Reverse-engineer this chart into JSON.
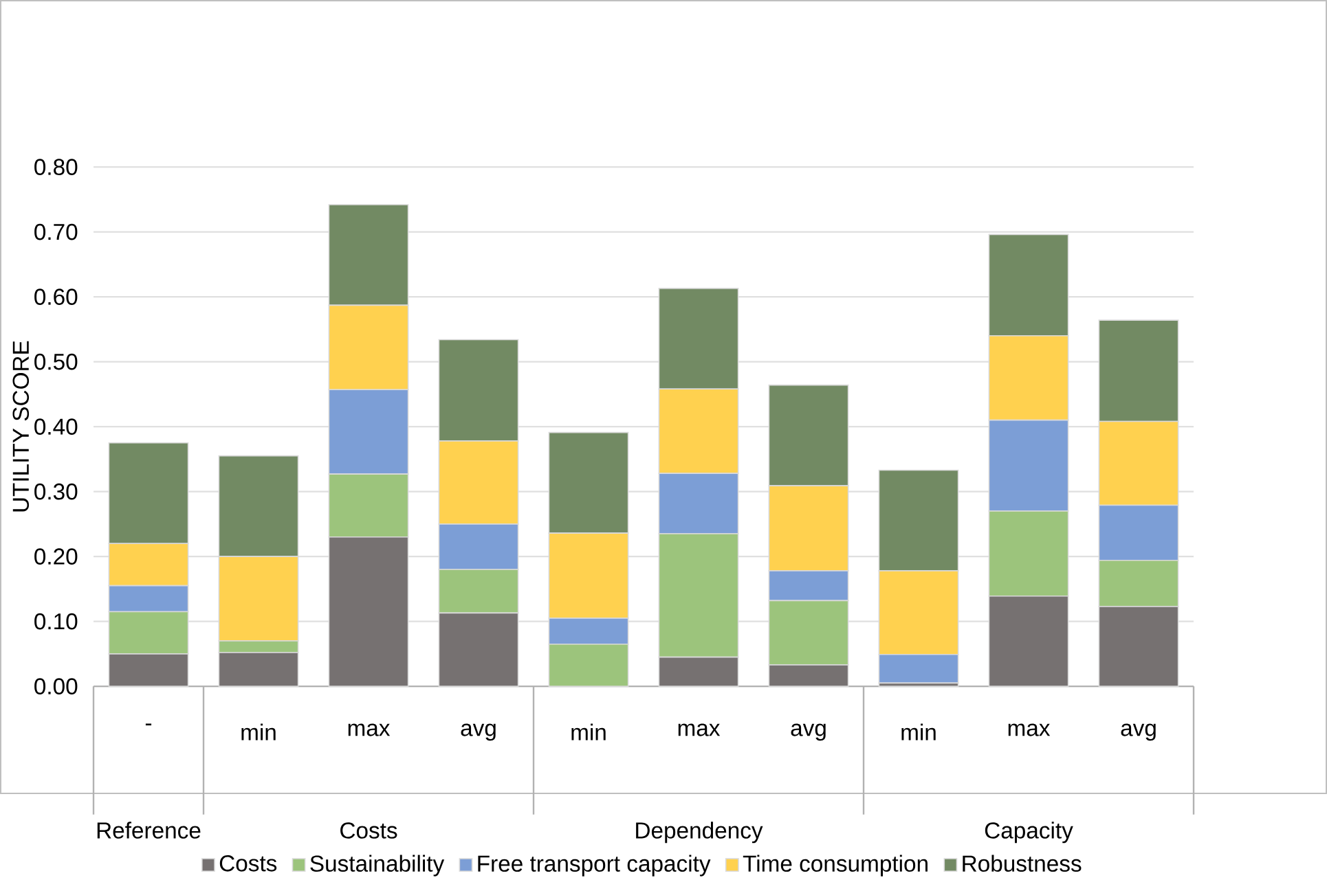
{
  "chart_data": {
    "type": "bar",
    "stacked": true,
    "ylabel": "UTILITY SCORE",
    "categories": [
      "-",
      "min",
      "max",
      "avg",
      "min",
      "max",
      "avg",
      "min",
      "max",
      "avg"
    ],
    "annotations": [
      "Reference",
      "Costs",
      "Dependency",
      "Capacity"
    ],
    "series": [
      {
        "name": "Costs",
        "color": "#767171",
        "values": [
          0.05,
          0.052,
          0.23,
          0.113,
          0.0,
          0.045,
          0.033,
          0.005,
          0.139,
          0.123
        ]
      },
      {
        "name": "Sustainability",
        "color": "#9cc47c",
        "values": [
          0.065,
          0.018,
          0.097,
          0.067,
          0.065,
          0.19,
          0.099,
          0.0,
          0.131,
          0.071
        ]
      },
      {
        "name": "Free transport capacity",
        "color": "#7c9ed6",
        "values": [
          0.04,
          0.0,
          0.13,
          0.07,
          0.04,
          0.093,
          0.046,
          0.044,
          0.14,
          0.085
        ]
      },
      {
        "name": "Time consumption",
        "color": "#ffd14f",
        "values": [
          0.065,
          0.13,
          0.13,
          0.128,
          0.131,
          0.13,
          0.131,
          0.129,
          0.13,
          0.129
        ]
      },
      {
        "name": "Robustness",
        "color": "#728a63",
        "values": [
          0.155,
          0.155,
          0.155,
          0.156,
          0.155,
          0.155,
          0.155,
          0.155,
          0.156,
          0.156
        ]
      }
    ],
    "ylim": [
      0,
      0.8
    ],
    "yticks": [
      {
        "value": 0,
        "label": "0.00"
      },
      {
        "value": 0.1,
        "label": "0.10"
      },
      {
        "value": 0.2,
        "label": "0.20"
      },
      {
        "value": 0.3,
        "label": "0.30"
      },
      {
        "value": 0.4,
        "label": "0.40"
      },
      {
        "value": 0.5,
        "label": "0.50"
      },
      {
        "value": 0.6,
        "label": "0.60"
      },
      {
        "value": 0.7,
        "label": "0.70"
      },
      {
        "value": 0.8,
        "label": "0.80"
      }
    ],
    "grid": "y",
    "legend": "bottom"
  }
}
